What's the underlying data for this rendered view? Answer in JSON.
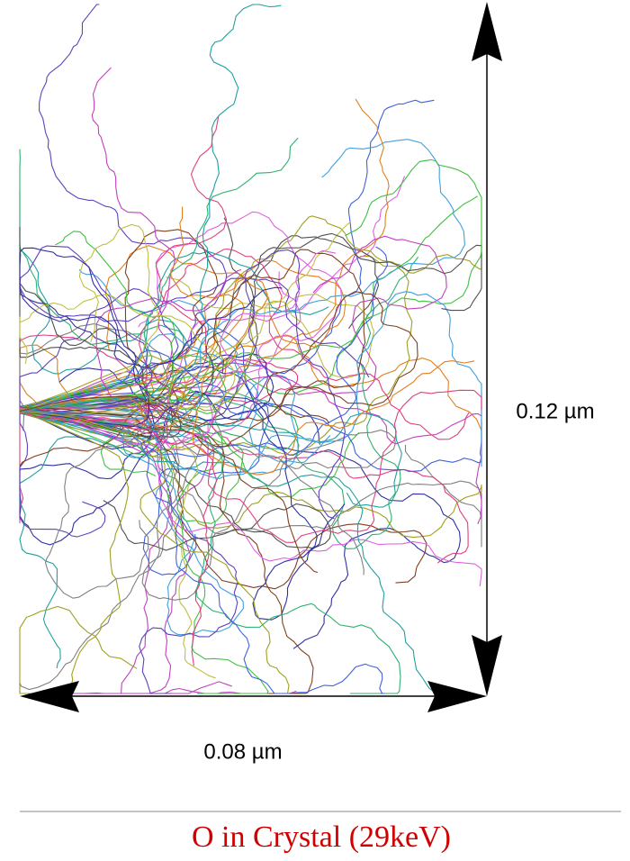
{
  "vertical_scale": {
    "label": "0.12 µm"
  },
  "horizontal_scale": {
    "label": "0.08 µm"
  },
  "caption": {
    "title": "O in Crystal (29keV)"
  }
}
